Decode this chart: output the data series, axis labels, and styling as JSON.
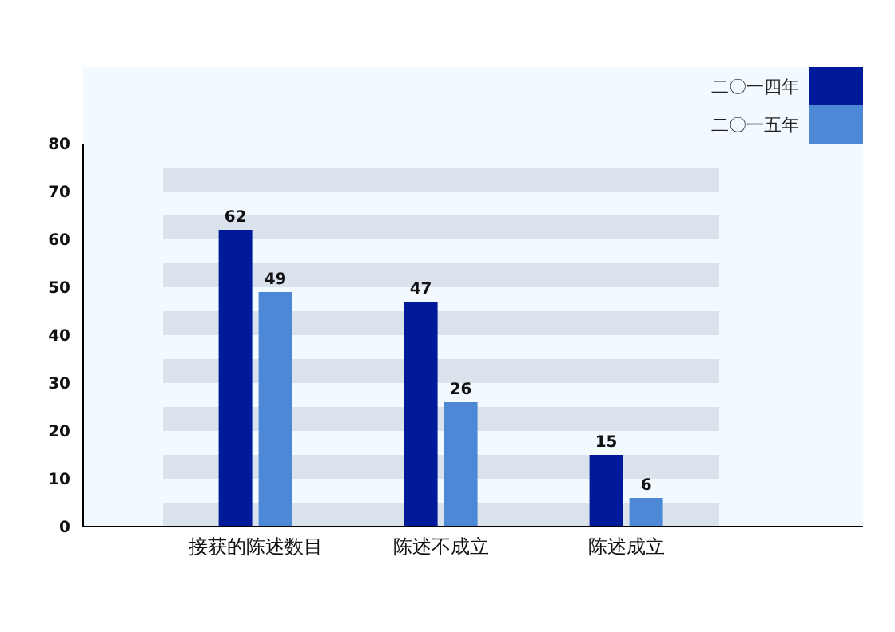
{
  "chart_data": {
    "type": "bar",
    "categories": [
      "接获的陈述数目",
      "陈述不成立",
      "陈述成立"
    ],
    "series": [
      {
        "name": "二〇一四年",
        "color": "#001a9a",
        "values": [
          62,
          47,
          15
        ]
      },
      {
        "name": "二〇一五年",
        "color": "#4d88d6",
        "values": [
          49,
          26,
          6
        ]
      }
    ],
    "ylim": [
      0,
      80
    ],
    "yticks": [
      0,
      10,
      20,
      30,
      40,
      50,
      60,
      70,
      80
    ],
    "legend": "top right",
    "data_labels": true,
    "bands": [
      {
        "axis": "y",
        "from": 0,
        "to": 5,
        "color": "#dae2ec"
      },
      {
        "axis": "y",
        "from": 10,
        "to": 15,
        "color": "#dae2ec"
      },
      {
        "axis": "y",
        "from": 20,
        "to": 25,
        "color": "#dae2ec"
      },
      {
        "axis": "y",
        "from": 30,
        "to": 35,
        "color": "#dae2ec"
      },
      {
        "axis": "y",
        "from": 40,
        "to": 45,
        "color": "#dae2ec"
      },
      {
        "axis": "y",
        "from": 50,
        "to": 55,
        "color": "#dae2ec"
      },
      {
        "axis": "y",
        "from": 60,
        "to": 65,
        "color": "#dae2ec"
      },
      {
        "axis": "y",
        "from": 70,
        "to": 75,
        "color": "#dae2ec"
      }
    ]
  }
}
